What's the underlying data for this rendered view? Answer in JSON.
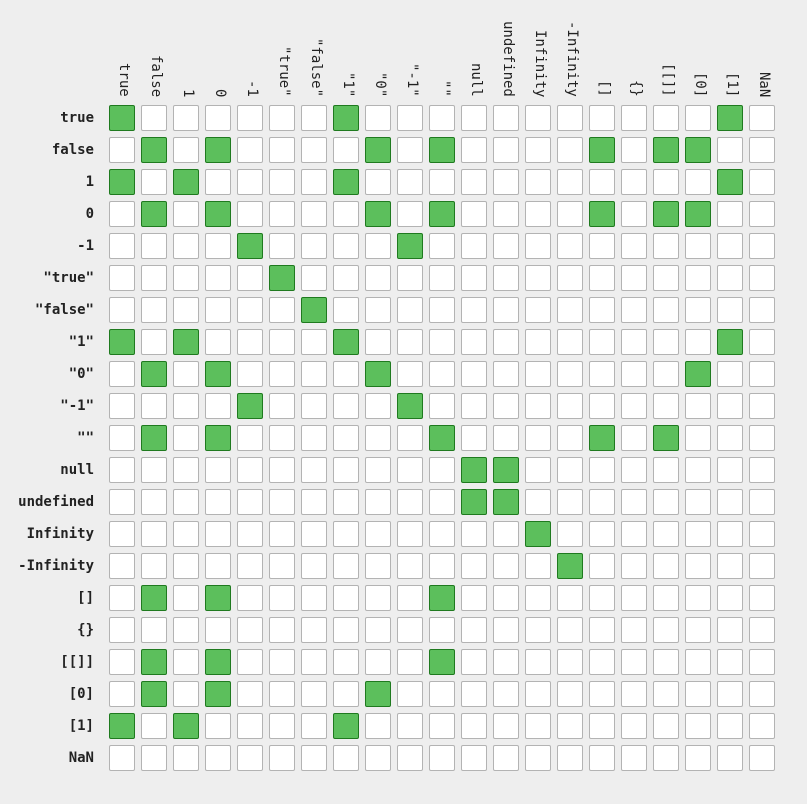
{
  "labels": [
    "true",
    "false",
    "1",
    "0",
    "-1",
    "\"true\"",
    "\"false\"",
    "\"1\"",
    "\"0\"",
    "\"-1\"",
    "\"\"",
    "null",
    "undefined",
    "Infinity",
    "-Infinity",
    "[]",
    "{}",
    "[[]]",
    "[0]",
    "[1]",
    "NaN"
  ],
  "matrix": [
    "100000010000000000010",
    "010100001010000101100",
    "101000010000000000010",
    "010100001010000101100",
    "000010000100000000000",
    "000001000000000000000",
    "000000100000000000000",
    "101000010000000000010",
    "010100001000000000100",
    "000010000100000000000",
    "010100000010000101000",
    "000000000001100000000",
    "000000000001100000000",
    "000000000000010000000",
    "000000000000001000000",
    "010100000010000000000",
    "000000000000000000000",
    "010100000010000000000",
    "010100001000000000000",
    "101000010000000000000",
    "000000000000000000000"
  ],
  "colors": {
    "equal_fill": "#5cbf5c",
    "equal_border": "#1f7a1f",
    "empty_fill": "#ffffff",
    "empty_border": "#b3b3b3",
    "background": "#eeeeee"
  }
}
